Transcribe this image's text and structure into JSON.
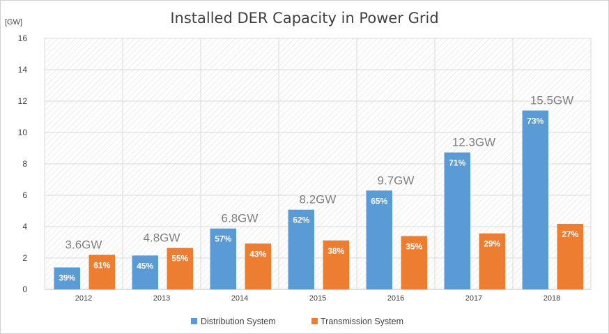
{
  "chart_data": {
    "type": "bar",
    "title": "Installed DER Capacity in Power Grid",
    "ylabel": "[GW]",
    "ylim": [
      0,
      16
    ],
    "yticks": [
      0,
      2,
      4,
      6,
      8,
      10,
      12,
      14,
      16
    ],
    "categories": [
      "2012",
      "2013",
      "2014",
      "2015",
      "2016",
      "2017",
      "2018"
    ],
    "totals": [
      "3.6GW",
      "4.8GW",
      "6.8GW",
      "8.2GW",
      "9.7GW",
      "12.3GW",
      "15.5GW"
    ],
    "series": [
      {
        "name": "Distribution System",
        "color": "#5b9bd5",
        "values": [
          1.4,
          2.16,
          3.88,
          5.08,
          6.3,
          8.73,
          11.4
        ],
        "labels": [
          "39%",
          "45%",
          "57%",
          "62%",
          "65%",
          "71%",
          "73%"
        ]
      },
      {
        "name": "Transmission System",
        "color": "#ed7d31",
        "values": [
          2.2,
          2.64,
          2.92,
          3.12,
          3.4,
          3.57,
          4.18
        ],
        "labels": [
          "61%",
          "55%",
          "43%",
          "38%",
          "35%",
          "29%",
          "27%"
        ]
      }
    ],
    "grid": true,
    "legend": "bottom"
  }
}
